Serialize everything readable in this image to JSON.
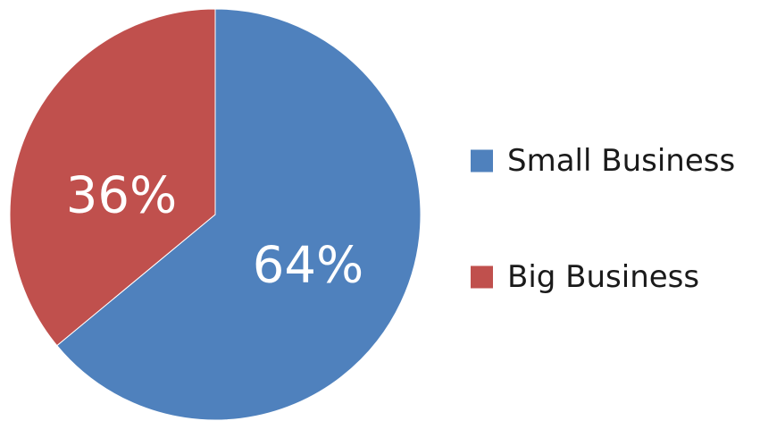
{
  "chart_data": {
    "type": "pie",
    "categories": [
      "Small Business",
      "Big Business"
    ],
    "values": [
      64,
      36
    ],
    "data_labels": [
      "64%",
      "36%"
    ],
    "colors": [
      "#4f81bd",
      "#c0504d"
    ],
    "start": "12 o'clock",
    "direction": "clockwise",
    "legend": {
      "position": "right",
      "entries": [
        "Small Business",
        "Big Business"
      ]
    }
  }
}
